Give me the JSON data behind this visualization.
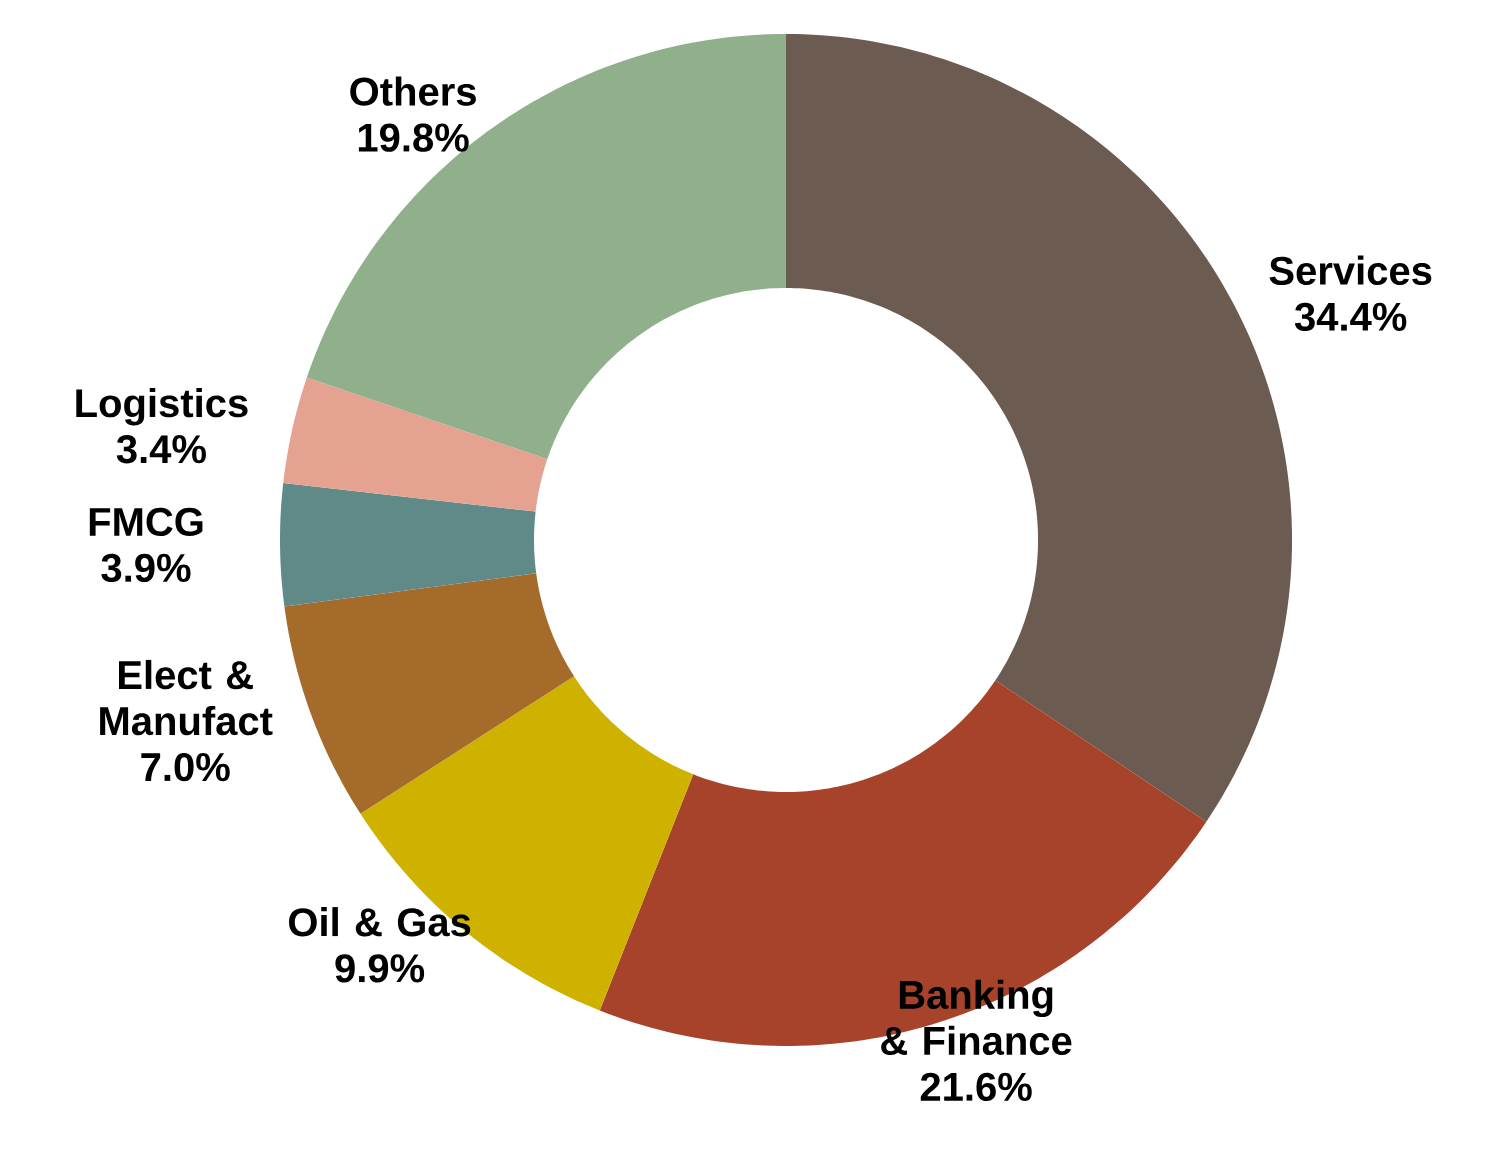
{
  "chart_data": {
    "type": "donut",
    "categories": [
      "Services",
      "Banking & Finance",
      "Oil & Gas",
      "Elect & Manufact",
      "FMCG",
      "Logistics",
      "Others"
    ],
    "values": [
      34.4,
      21.6,
      9.9,
      7.0,
      3.9,
      3.4,
      19.8
    ],
    "value_labels": [
      "34.4%",
      "21.6%",
      "9.9%",
      "7.0%",
      "3.9%",
      "3.4%",
      "19.8%"
    ],
    "colors": [
      "#6b5b51",
      "#a8432b",
      "#cfb200",
      "#a56b2b",
      "#5f8a87",
      "#e5a291",
      "#8fb08b"
    ]
  }
}
